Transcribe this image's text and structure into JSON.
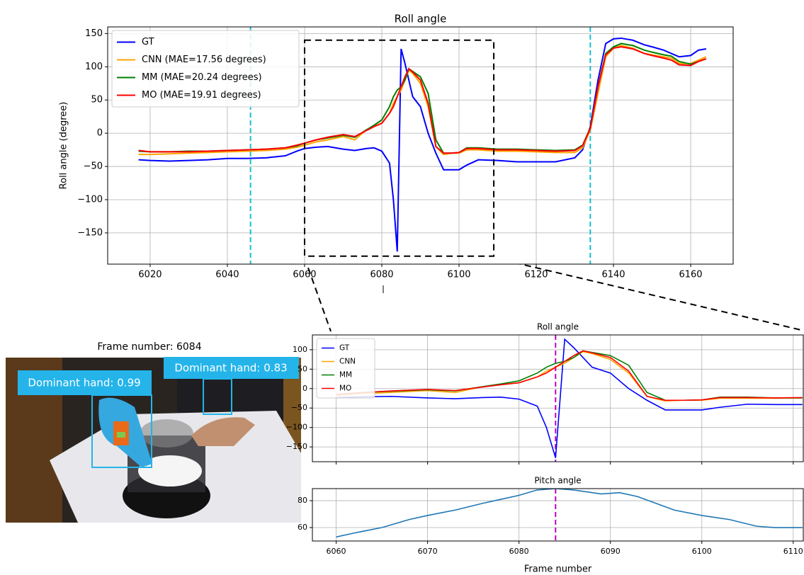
{
  "chart_data": [
    {
      "type": "line",
      "title": "Roll angle",
      "ylabel": "Roll angle (degree)",
      "x": [
        6017,
        6020,
        6025,
        6030,
        6035,
        6040,
        6045,
        6050,
        6055,
        6058,
        6060,
        6063,
        6066,
        6070,
        6073,
        6076,
        6078,
        6080,
        6082,
        6083,
        6084,
        6085,
        6086,
        6087,
        6088,
        6090,
        6092,
        6094,
        6096,
        6098,
        6100,
        6102,
        6105,
        6110,
        6115,
        6120,
        6125,
        6130,
        6132,
        6134,
        6136,
        6138,
        6140,
        6142,
        6145,
        6148,
        6150,
        6153,
        6155,
        6157,
        6160,
        6162,
        6164
      ],
      "series": [
        {
          "name": "GT",
          "color": "#0000ff",
          "values": [
            -40,
            -41,
            -42,
            -41,
            -40,
            -38,
            -38,
            -37,
            -34,
            -27,
            -23,
            -21,
            -20,
            -24,
            -26,
            -23,
            -22,
            -27,
            -45,
            -100,
            -178,
            127,
            105,
            80,
            55,
            40,
            0,
            -30,
            -55,
            -55,
            -55,
            -48,
            -40,
            -41,
            -43,
            -43,
            -43,
            -37,
            -25,
            10,
            80,
            135,
            142,
            143,
            140,
            133,
            130,
            125,
            120,
            115,
            117,
            125,
            127
          ]
        },
        {
          "name": "CNN (MAE=17.56 degrees)",
          "color": "#ffa500",
          "values": [
            -32,
            -32,
            -31,
            -30,
            -29,
            -28,
            -27,
            -26,
            -24,
            -21,
            -18,
            -13,
            -10,
            -5,
            -10,
            5,
            10,
            15,
            30,
            45,
            55,
            65,
            80,
            95,
            90,
            75,
            40,
            -20,
            -32,
            -30,
            -30,
            -25,
            -25,
            -27,
            -27,
            -28,
            -29,
            -29,
            -22,
            5,
            60,
            115,
            128,
            132,
            128,
            120,
            118,
            115,
            113,
            105,
            105,
            110,
            115
          ]
        },
        {
          "name": "MM (MAE=20.24 degrees)",
          "color": "#008000",
          "values": [
            -27,
            -28,
            -28,
            -27,
            -27,
            -26,
            -25,
            -24,
            -22,
            -19,
            -15,
            -10,
            -7,
            -3,
            -6,
            5,
            12,
            20,
            40,
            55,
            65,
            70,
            80,
            97,
            93,
            85,
            60,
            -10,
            -30,
            -30,
            -29,
            -22,
            -22,
            -24,
            -24,
            -25,
            -26,
            -25,
            -18,
            8,
            70,
            120,
            130,
            135,
            132,
            125,
            122,
            118,
            116,
            108,
            104,
            108,
            112
          ]
        },
        {
          "name": "MO (MAE=19.91 degrees)",
          "color": "#ff0000",
          "values": [
            -26,
            -28,
            -28,
            -28,
            -27,
            -26,
            -25,
            -24,
            -22,
            -18,
            -15,
            -10,
            -6,
            -2,
            -5,
            4,
            10,
            15,
            30,
            40,
            55,
            70,
            85,
            97,
            92,
            80,
            45,
            -20,
            -30,
            -30,
            -29,
            -23,
            -23,
            -25,
            -25,
            -26,
            -27,
            -26,
            -19,
            7,
            70,
            118,
            128,
            130,
            127,
            120,
            117,
            113,
            110,
            103,
            102,
            108,
            112
          ]
        }
      ],
      "xlim": [
        6009,
        6171
      ],
      "ylim": [
        -197,
        160
      ],
      "xticks": [
        6020,
        6040,
        6060,
        6080,
        6100,
        6120,
        6140,
        6160
      ],
      "yticks": [
        150,
        100,
        50,
        0,
        {
          "value": -50,
          "label": "−50"
        },
        {
          "value": -100,
          "label": "−100"
        },
        {
          "value": -150,
          "label": "−150"
        }
      ],
      "grid": true,
      "legend": "upper left",
      "vlines": [
        6046,
        6134
      ],
      "vline_color": "#17becf",
      "zoom_box": {
        "xlim": [
          6060,
          6109
        ],
        "ylim": [
          -185,
          140
        ]
      }
    },
    {
      "type": "line",
      "title": "Roll angle",
      "x": [
        6060,
        6063,
        6066,
        6070,
        6073,
        6076,
        6078,
        6080,
        6082,
        6083,
        6084,
        6085,
        6086,
        6087,
        6088,
        6090,
        6092,
        6094,
        6096,
        6098,
        6100,
        6102,
        6105,
        6108,
        6111
      ],
      "series": [
        {
          "name": "GT",
          "color": "#0000ff",
          "values": [
            -23,
            -21,
            -20,
            -24,
            -26,
            -23,
            -22,
            -27,
            -45,
            -100,
            -178,
            127,
            105,
            80,
            55,
            40,
            0,
            -30,
            -55,
            -55,
            -55,
            -48,
            -40,
            -41,
            -41
          ]
        },
        {
          "name": "CNN",
          "color": "#ffa500",
          "values": [
            -18,
            -13,
            -10,
            -5,
            -10,
            5,
            10,
            15,
            30,
            45,
            55,
            65,
            80,
            95,
            90,
            75,
            40,
            -20,
            -32,
            -30,
            -30,
            -25,
            -25,
            -25,
            -24
          ]
        },
        {
          "name": "MM",
          "color": "#008000",
          "values": [
            -15,
            -10,
            -7,
            -3,
            -6,
            5,
            12,
            20,
            40,
            55,
            65,
            70,
            80,
            97,
            93,
            85,
            60,
            -10,
            -30,
            -30,
            -29,
            -22,
            -22,
            -24,
            -24
          ]
        },
        {
          "name": "MO",
          "color": "#ff0000",
          "values": [
            -15,
            -10,
            -6,
            -2,
            -5,
            4,
            10,
            15,
            30,
            40,
            55,
            70,
            85,
            97,
            92,
            80,
            45,
            -20,
            -30,
            -30,
            -29,
            -23,
            -23,
            -24,
            -23
          ]
        }
      ],
      "xlim": [
        6057.4,
        6111.1
      ],
      "ylim": [
        -188,
        138
      ],
      "yticks": [
        100,
        50,
        0,
        {
          "value": -50,
          "label": "−50"
        },
        {
          "value": -100,
          "label": "−100"
        },
        {
          "value": -150,
          "label": "−150"
        }
      ],
      "grid": true,
      "legend": "upper left",
      "vlines": [
        6084
      ],
      "vline_color": "#bf00bf"
    },
    {
      "type": "line",
      "title": "Pitch angle",
      "xlabel": "Frame number",
      "x": [
        6060,
        6062,
        6065,
        6068,
        6070,
        6073,
        6076,
        6078,
        6080,
        6082,
        6084,
        6086,
        6088,
        6089,
        6091,
        6093,
        6095,
        6097,
        6100,
        6103,
        6106,
        6108,
        6111
      ],
      "values": [
        53,
        56,
        60,
        66,
        69,
        73,
        78,
        81,
        84,
        88,
        89,
        88,
        86,
        85,
        86,
        83,
        78,
        73,
        69,
        66,
        61,
        60,
        60
      ],
      "color": "#1f77b4",
      "xlim": [
        6057.4,
        6111.1
      ],
      "ylim": [
        50,
        89
      ],
      "xticks": [
        6060,
        6070,
        6080,
        6090,
        6100,
        6110
      ],
      "yticks": [
        60,
        80
      ],
      "grid": true,
      "vlines": [
        6084
      ],
      "vline_color": "#bf00bf"
    }
  ],
  "image": {
    "title": "Frame number: 6084",
    "boxes": [
      {
        "label": "Dominant hand: 0.99"
      },
      {
        "label": "Dominant hand: 0.83"
      }
    ]
  }
}
